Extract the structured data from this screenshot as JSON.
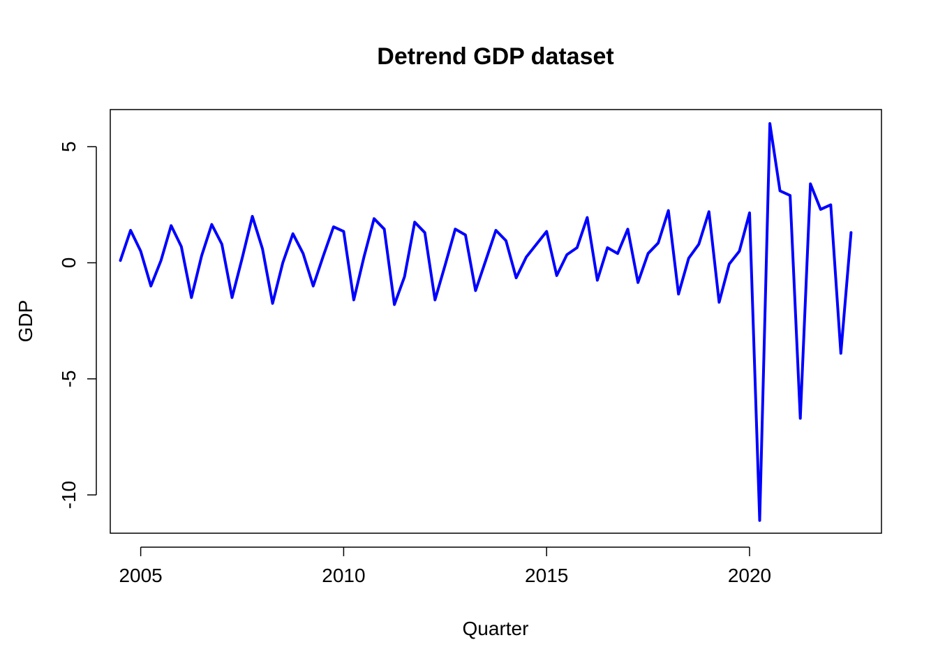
{
  "chart_data": {
    "type": "line",
    "title": "Detrend GDP dataset",
    "xlabel": "Quarter",
    "ylabel": "GDP",
    "xlim": [
      2004.25,
      2023.25
    ],
    "ylim": [
      -11.65,
      6.6
    ],
    "x_ticks": [
      2005,
      2010,
      2015,
      2020
    ],
    "x_tick_labels": [
      "2005",
      "2010",
      "2015",
      "2020"
    ],
    "y_ticks": [
      -10,
      -5,
      0,
      5
    ],
    "y_tick_labels": [
      "-10",
      "-5",
      "0",
      "5"
    ],
    "grid": false,
    "legend": "none",
    "x": [
      2004.5,
      2004.75,
      2005.0,
      2005.25,
      2005.5,
      2005.75,
      2006.0,
      2006.25,
      2006.5,
      2006.75,
      2007.0,
      2007.25,
      2007.5,
      2007.75,
      2008.0,
      2008.25,
      2008.5,
      2008.75,
      2009.0,
      2009.25,
      2009.5,
      2009.75,
      2010.0,
      2010.25,
      2010.5,
      2010.75,
      2011.0,
      2011.25,
      2011.5,
      2011.75,
      2012.0,
      2012.25,
      2012.5,
      2012.75,
      2013.0,
      2013.25,
      2013.5,
      2013.75,
      2014.0,
      2014.25,
      2014.5,
      2014.75,
      2015.0,
      2015.25,
      2015.5,
      2015.75,
      2016.0,
      2016.25,
      2016.5,
      2016.75,
      2017.0,
      2017.25,
      2017.5,
      2017.75,
      2018.0,
      2018.25,
      2018.5,
      2018.75,
      2019.0,
      2019.25,
      2019.5,
      2019.75,
      2020.0,
      2020.25,
      2020.5,
      2020.75,
      2021.0,
      2021.25,
      2021.5,
      2021.75,
      2022.0,
      2022.25,
      2022.5
    ],
    "series": [
      {
        "values": [
          0.1,
          1.4,
          0.5,
          -1.0,
          0.1,
          1.6,
          0.7,
          -1.5,
          0.3,
          1.65,
          0.8,
          -1.5,
          0.2,
          2.0,
          0.6,
          -1.75,
          0.0,
          1.25,
          0.4,
          -1.0,
          0.3,
          1.55,
          1.35,
          -1.6,
          0.25,
          1.9,
          1.45,
          -1.8,
          -0.6,
          1.75,
          1.3,
          -1.6,
          -0.1,
          1.45,
          1.2,
          -1.2,
          0.1,
          1.4,
          0.95,
          -0.65,
          0.25,
          0.8,
          1.35,
          -0.55,
          0.35,
          0.65,
          1.95,
          -0.75,
          0.65,
          0.4,
          1.45,
          -0.85,
          0.4,
          0.85,
          2.25,
          -1.35,
          0.2,
          0.8,
          2.2,
          -1.7,
          -0.05,
          0.5,
          2.15,
          -11.1,
          6.0,
          3.1,
          2.9,
          -6.7,
          3.4,
          2.3,
          2.5,
          -3.9,
          1.3
        ],
        "color": "#0000ff"
      }
    ]
  }
}
